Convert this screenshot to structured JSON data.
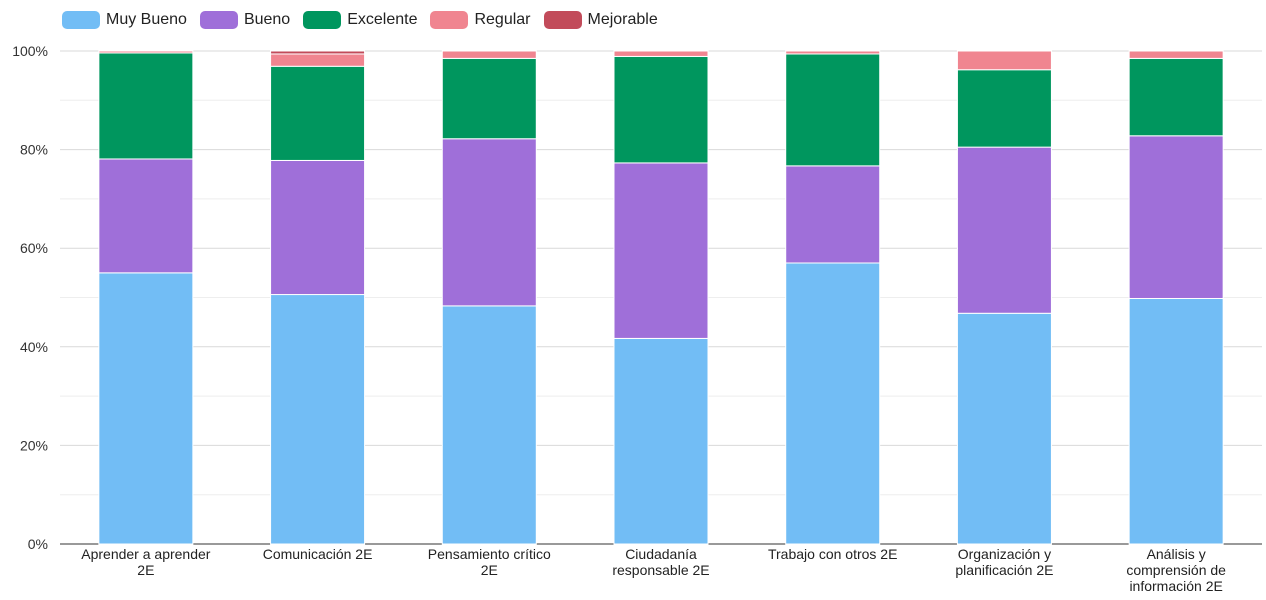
{
  "chart_data": {
    "type": "bar",
    "stacked": true,
    "normalized": true,
    "categories": [
      [
        "Aprender a aprender",
        "2E"
      ],
      [
        "Comunicación 2E"
      ],
      [
        "Pensamiento crítico",
        "2E"
      ],
      [
        "Ciudadanía",
        "responsable 2E"
      ],
      [
        "Trabajo con otros 2E"
      ],
      [
        "Organización y",
        "planificación 2E"
      ],
      [
        "Análisis y",
        "comprensión de",
        "información 2E"
      ]
    ],
    "series": [
      {
        "name": "Muy Bueno",
        "color": "#72BDF5",
        "values": [
          55.0,
          50.6,
          48.3,
          41.7,
          57.0,
          46.8,
          49.8
        ]
      },
      {
        "name": "Bueno",
        "color": "#9F6FD9",
        "values": [
          23.1,
          27.2,
          33.9,
          35.6,
          19.7,
          33.7,
          33.0
        ]
      },
      {
        "name": "Excelente",
        "color": "#00965E",
        "values": [
          21.5,
          19.1,
          16.3,
          21.6,
          22.7,
          15.7,
          15.7
        ]
      },
      {
        "name": "Regular",
        "color": "#F08590",
        "values": [
          0.4,
          2.5,
          1.5,
          1.1,
          0.6,
          3.8,
          1.5
        ]
      },
      {
        "name": "Mejorable",
        "color": "#C24B5A",
        "values": [
          0.0,
          0.6,
          0.0,
          0.0,
          0.0,
          0.0,
          0.0
        ]
      }
    ],
    "ylim": [
      0,
      100
    ],
    "y_ticks": [
      "0%",
      "20%",
      "40%",
      "60%",
      "80%",
      "100%"
    ],
    "grid": true,
    "legend_position": "top-left",
    "title": "",
    "xlabel": "",
    "ylabel": ""
  }
}
